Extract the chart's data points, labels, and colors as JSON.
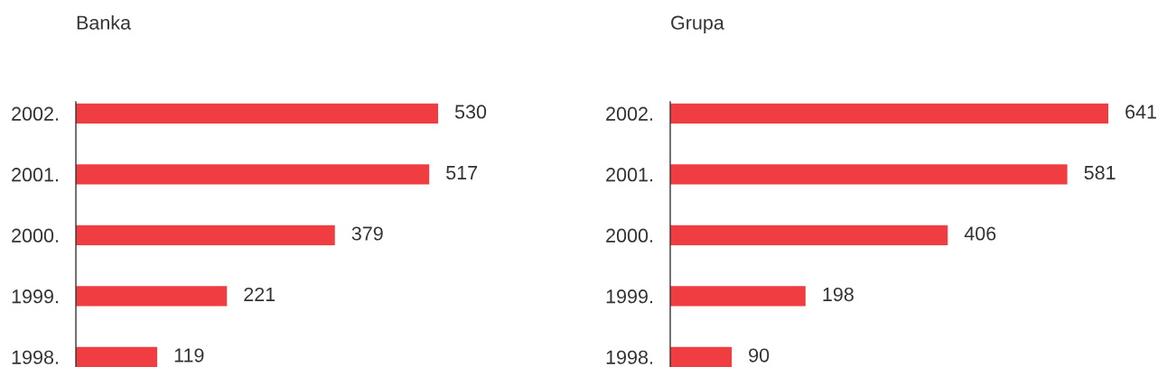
{
  "chart_data": [
    {
      "type": "bar",
      "orientation": "horizontal",
      "title": "Banka",
      "categories": [
        "2002.",
        "2001.",
        "2000.",
        "1999.",
        "1998."
      ],
      "values": [
        530,
        517,
        379,
        221,
        119
      ],
      "color": "#ef3d42",
      "data_labels": true,
      "tick_labels": "y"
    },
    {
      "type": "bar",
      "orientation": "horizontal",
      "title": "Grupa",
      "categories": [
        "2002.",
        "2001.",
        "2000.",
        "1999.",
        "1998."
      ],
      "values": [
        641,
        581,
        406,
        198,
        90
      ],
      "color": "#ef3d42",
      "data_labels": true,
      "tick_labels": "y"
    }
  ]
}
